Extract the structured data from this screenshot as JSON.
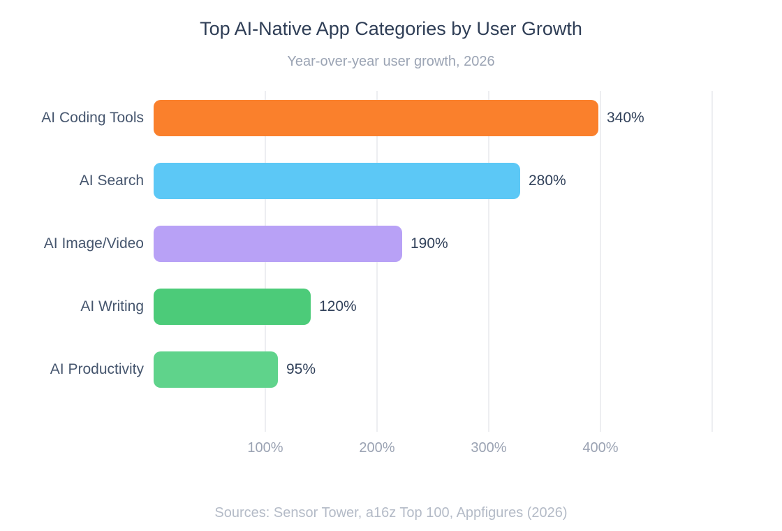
{
  "chart_data": {
    "type": "bar",
    "orientation": "horizontal",
    "title": "Top AI-Native App Categories by User Growth",
    "subtitle": "Year-over-year user growth, 2026",
    "source_note": "Sources: Sensor Tower, a16z Top 100, Appfigures (2026)",
    "categories": [
      "AI Coding Tools",
      "AI Search",
      "AI Image/Video",
      "AI Writing",
      "AI Productivity"
    ],
    "values": [
      340,
      280,
      190,
      120,
      95
    ],
    "value_labels": [
      "340%",
      "280%",
      "190%",
      "120%",
      "95%"
    ],
    "bar_colors": [
      "#FA802C",
      "#5CC8F6",
      "#B8A1F6",
      "#4CCB79",
      "#5FD38B"
    ],
    "x_ticks": [
      {
        "value": 100,
        "label": "100%"
      },
      {
        "value": 200,
        "label": "200%"
      },
      {
        "value": 300,
        "label": "300%"
      },
      {
        "value": 400,
        "label": "400%"
      }
    ],
    "grid_values": [
      100,
      200,
      300,
      400,
      500
    ],
    "xlim": [
      0,
      500
    ],
    "grid": true,
    "xlabel": "",
    "ylabel": "",
    "theme": {
      "background": "#FFFFFF",
      "title_color": "#2F3E56",
      "subtitle_color": "#9BA4B4",
      "category_label_color": "#46566E",
      "value_label_color": "#31415A",
      "tick_label_color": "#9BA3B3",
      "source_color": "#B4BBC7",
      "gridline_color": "#EDEEF1"
    }
  }
}
